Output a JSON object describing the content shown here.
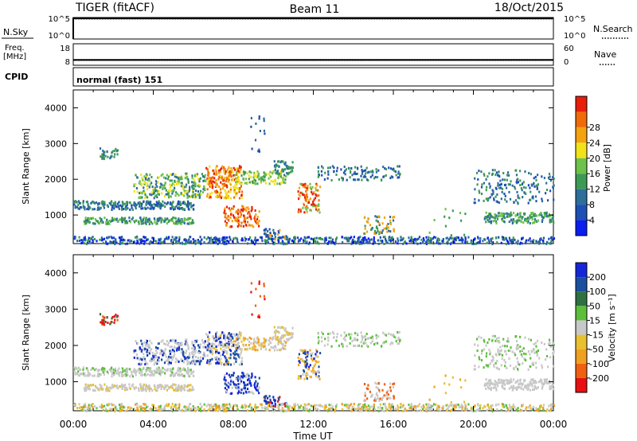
{
  "header": {
    "title": "TIGER (fitACF)",
    "beam": "Beam 11",
    "date": "18/Oct/2015"
  },
  "status_panels": {
    "nsky_label": "N.Sky",
    "nsearch_label": "N.Search",
    "freq_label_1": "Freq.",
    "freq_label_2": "[MHz]",
    "nave_label": "Nave",
    "cpid_label": "CPID",
    "cpid_value": "normal (fast) 151",
    "noise_ticks_left": [
      "10^5",
      "10^0"
    ],
    "noise_ticks_right": [
      "10^5",
      "10^0"
    ],
    "freq_ticks": [
      "18",
      "8"
    ],
    "nave_ticks": [
      "60",
      "0"
    ],
    "freq_level_mhz": 10.5,
    "freq_ylim": [
      8,
      18
    ]
  },
  "colors": {
    "power_scale": [
      "#0a1ef0",
      "#1e4fb4",
      "#2e6e9a",
      "#3d9a55",
      "#6cc24a",
      "#f2e21a",
      "#f5a20f",
      "#f06a0a",
      "#e81e0a"
    ],
    "velocity_scale": [
      "#1427d8",
      "#1a4fa0",
      "#2e7040",
      "#5bbf3a",
      "#c8c8c8",
      "#e8c030",
      "#f0a020",
      "#f06010",
      "#e81010"
    ]
  },
  "chart_data": [
    {
      "type": "heatmap",
      "ylabel": "Slant Range [km]",
      "yticks": [
        "1000",
        "2000",
        "3000",
        "4000"
      ],
      "ylim": [
        200,
        4500
      ],
      "colorbar_label": "Power [dB]",
      "colorbar_ticks": [
        "4",
        "8",
        "12",
        "16",
        "20",
        "24",
        "28"
      ],
      "colorbar_range": [
        0,
        32
      ],
      "grid": false
    },
    {
      "type": "heatmap",
      "ylabel": "Slant Range [km]",
      "yticks": [
        "1000",
        "2000",
        "3000",
        "4000"
      ],
      "ylim": [
        200,
        4500
      ],
      "colorbar_label": "Velocity [m s⁻¹]",
      "colorbar_ticks": [
        "200",
        "100",
        "50",
        "15",
        "-15",
        "-50",
        "-100",
        "-200"
      ],
      "grid": false
    }
  ],
  "xaxis": {
    "label": "Time UT",
    "ticks": [
      "00:00",
      "04:00",
      "08:00",
      "12:00",
      "16:00",
      "20:00",
      "00:00"
    ],
    "range_hours": [
      0,
      24
    ]
  }
}
